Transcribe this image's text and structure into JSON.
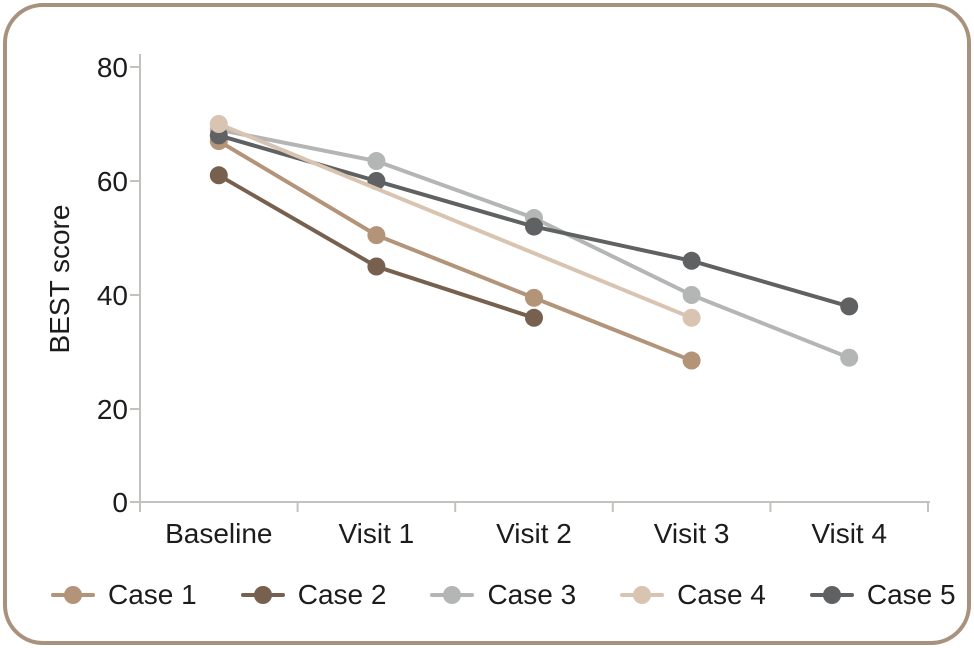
{
  "chart_data": {
    "type": "line",
    "ylabel": "BEST score",
    "categories": [
      "Baseline",
      "Visit 1",
      "Visit 2",
      "Visit 3",
      "Visit 4"
    ],
    "y_ticks": [
      80,
      60,
      40,
      20,
      0
    ],
    "ylim": [
      0,
      80
    ],
    "grid": false,
    "legend_position": "bottom",
    "series": [
      {
        "name": "Case 1",
        "color": "#b39478",
        "values": [
          67,
          50.5,
          39.5,
          28.5,
          null
        ]
      },
      {
        "name": "Case 2",
        "color": "#77614e",
        "values": [
          61,
          45,
          36,
          null,
          null
        ]
      },
      {
        "name": "Case 3",
        "color": "#b3b6b5",
        "values": [
          69,
          63.5,
          53.5,
          40,
          29
        ]
      },
      {
        "name": "Case 4",
        "color": "#d8c4b0",
        "values": [
          70,
          null,
          null,
          36,
          null
        ]
      },
      {
        "name": "Case 5",
        "color": "#5f6163",
        "values": [
          68,
          60,
          52,
          46,
          38
        ]
      }
    ]
  },
  "style": {
    "border_color": "#a8927e",
    "axis_color": "#c4c2bf",
    "text_color": "#1c1c1c",
    "background": "#ffffff"
  }
}
